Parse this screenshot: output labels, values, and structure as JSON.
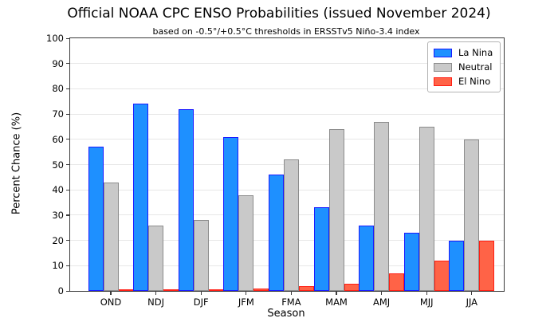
{
  "chart_data": {
    "type": "bar",
    "title": "Official NOAA CPC ENSO Probabilities (issued November 2024)",
    "subtitle": "based on -0.5°/+0.5°C thresholds in ERSSTv5 Niño-3.4 index",
    "xlabel": "Season",
    "ylabel": "Percent Chance (%)",
    "ylim": [
      0,
      100
    ],
    "yticks": [
      0,
      10,
      20,
      30,
      40,
      50,
      60,
      70,
      80,
      90,
      100
    ],
    "grid": "horizontal-light",
    "legend_position": "upper right",
    "categories": [
      "OND",
      "NDJ",
      "DJF",
      "JFM",
      "FMA",
      "MAM",
      "AMJ",
      "MJJ",
      "JJA"
    ],
    "series": [
      {
        "name": "La Nina",
        "fill_color": "#1E90FF",
        "edge_color": "#1A1AFF",
        "values": [
          57,
          74,
          72,
          61,
          46,
          33,
          26,
          23,
          20
        ]
      },
      {
        "name": "Neutral",
        "fill_color": "#C9C9C9",
        "edge_color": "#8C8C8C",
        "values": [
          43,
          26,
          28,
          38,
          52,
          64,
          67,
          65,
          60
        ]
      },
      {
        "name": "El Nino",
        "fill_color": "#FF6347",
        "edge_color": "#FF1E14",
        "values": [
          0,
          0,
          0,
          1,
          2,
          3,
          7,
          12,
          20
        ]
      }
    ]
  }
}
